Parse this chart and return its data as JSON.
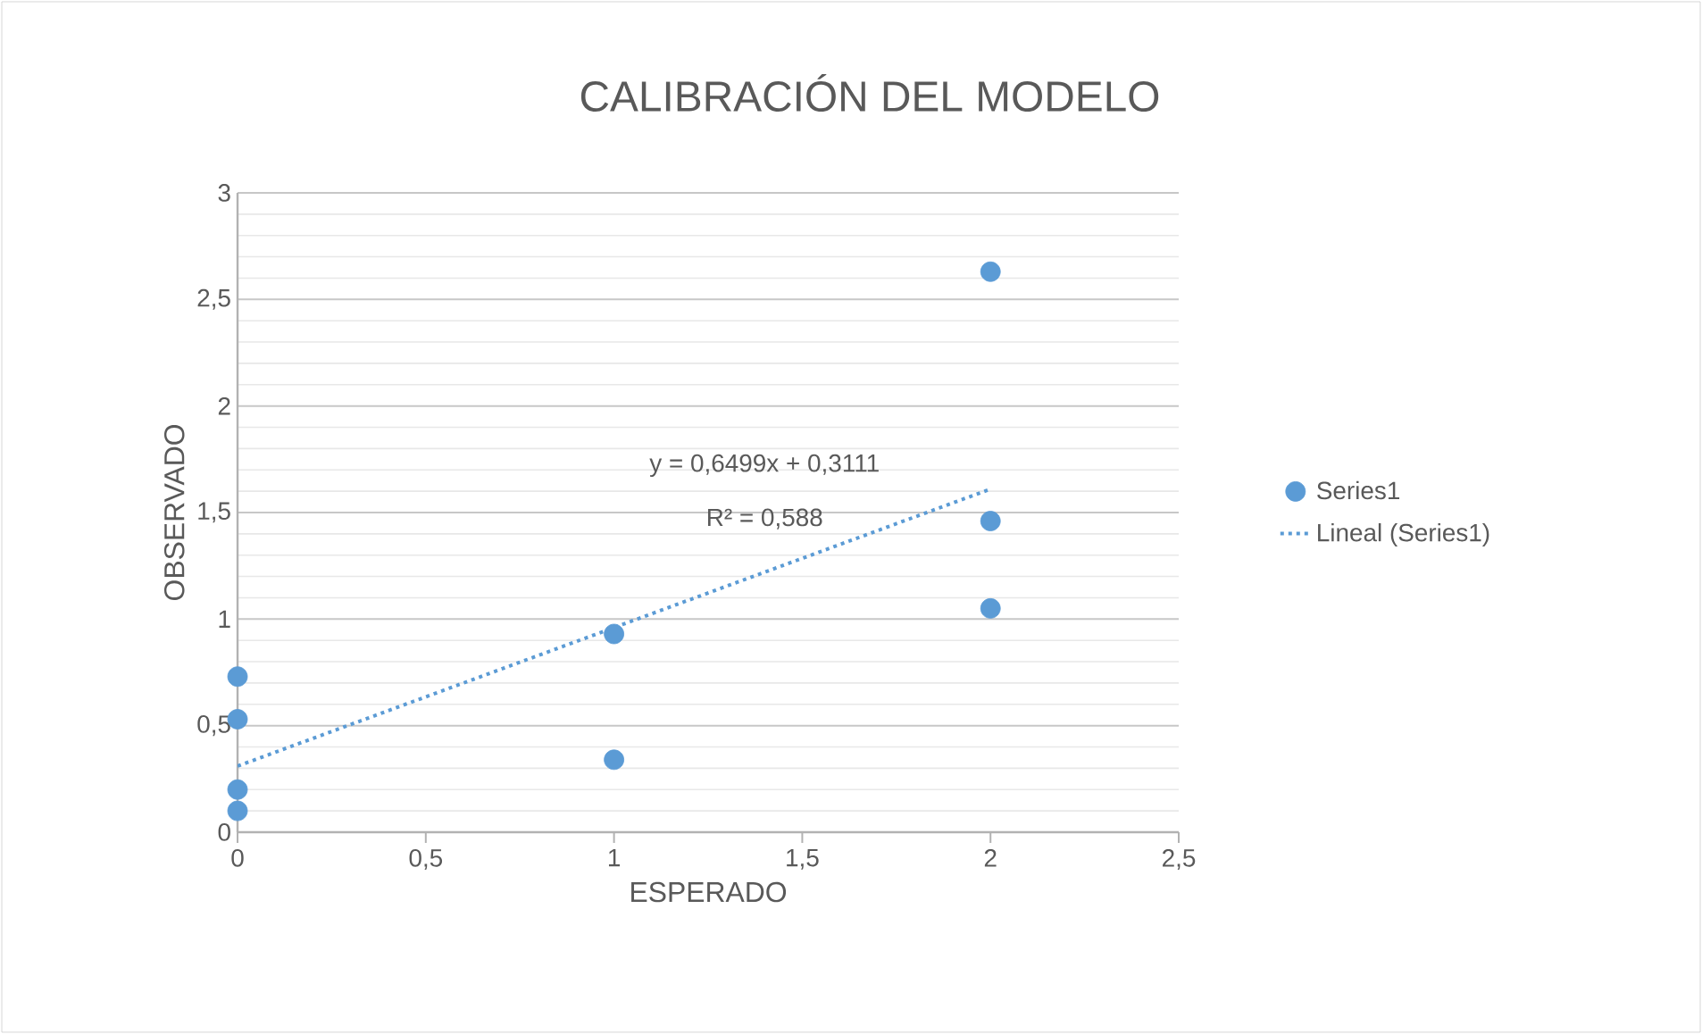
{
  "chart_data": {
    "type": "scatter",
    "title": "CALIBRACIÓN DEL MODELO",
    "xlabel": "ESPERADO",
    "ylabel": "OBSERVADO",
    "series": [
      {
        "name": "Series1",
        "type": "scatter",
        "color": "#5b9bd5",
        "marker": "circle",
        "x": [
          0,
          0,
          0,
          0,
          1,
          1,
          2,
          2,
          2
        ],
        "values": [
          0.73,
          0.53,
          0.2,
          0.1,
          0.93,
          0.34,
          2.63,
          1.46,
          1.05
        ]
      },
      {
        "name": "Lineal (Series1)",
        "type": "line",
        "color": "#5b9bd5",
        "marker": "none",
        "line_style": "dotted",
        "x": [
          0,
          2
        ],
        "values": [
          0.31,
          1.61
        ]
      }
    ],
    "annotations": [
      "y = 0,6499x + 0,3111",
      "R² = 0,588"
    ],
    "xlim": [
      0,
      2.5
    ],
    "ylim": [
      0,
      3
    ],
    "xticks": [
      0,
      {
        "value": 0.5,
        "label": "0,5"
      },
      1,
      {
        "value": 1.5,
        "label": "1,5"
      },
      2,
      {
        "value": 2.5,
        "label": "2,5"
      }
    ],
    "yticks": [
      0,
      {
        "value": 0.5,
        "label": "0,5"
      },
      1,
      {
        "value": 1.5,
        "label": "1,5"
      },
      2,
      {
        "value": 2.5,
        "label": "2,5"
      },
      3
    ],
    "grid": "y",
    "legend": "right"
  }
}
